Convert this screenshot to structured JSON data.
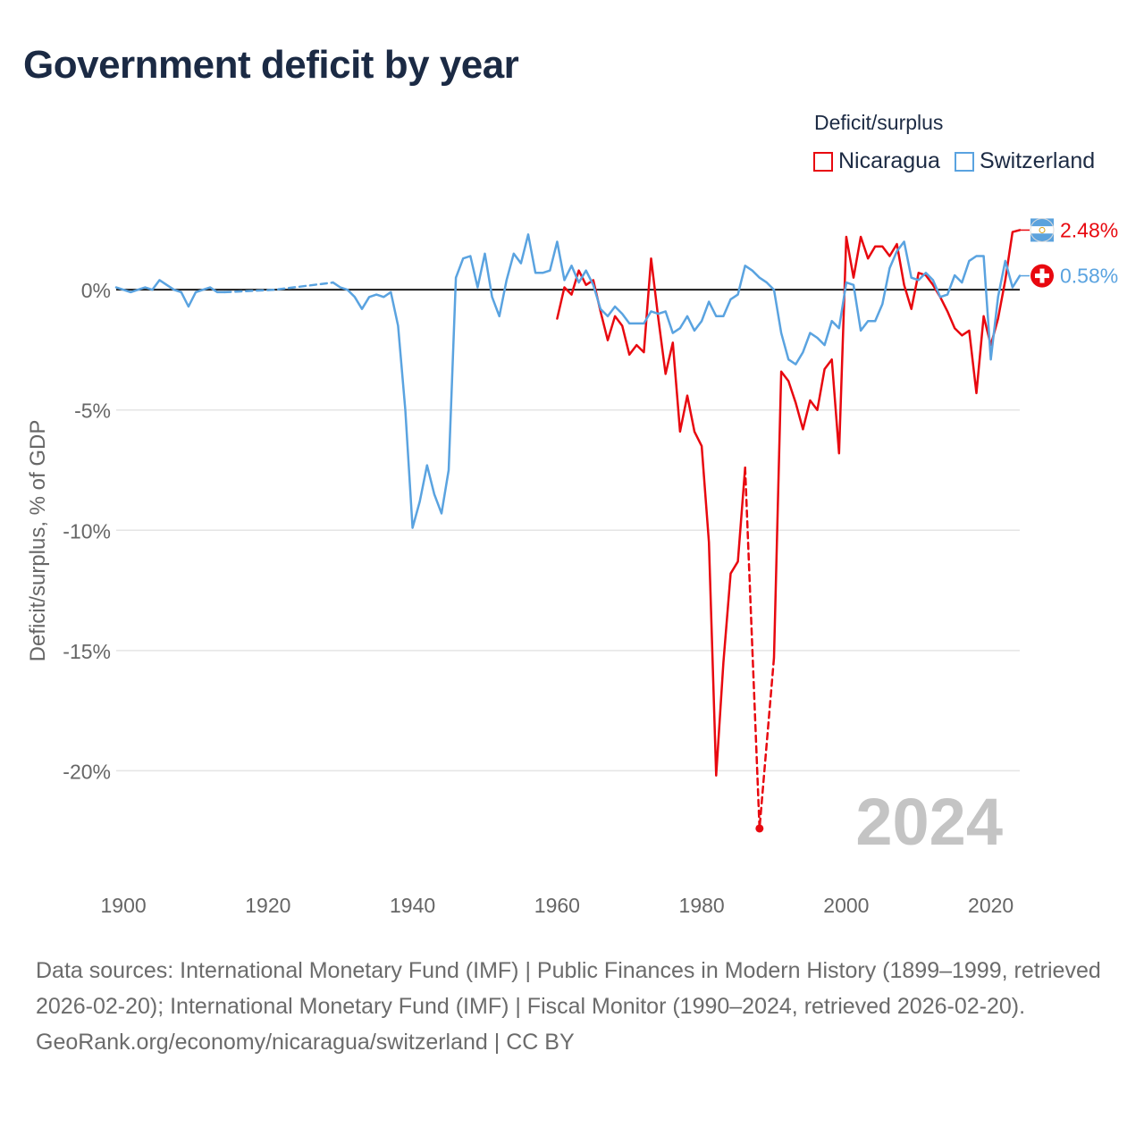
{
  "title": "Government deficit by year",
  "legend": {
    "title": "Deficit/surplus",
    "items": [
      {
        "name": "Nicaragua",
        "color": "#e8080f"
      },
      {
        "name": "Switzerland",
        "color": "#5aa3e0"
      }
    ]
  },
  "year_watermark": "2024",
  "sources_text": "Data sources: International Monetary Fund (IMF) | Public Finances in Modern History (1899–1999, retrieved 2026-02-20); International Monetary Fund (IMF) | Fiscal Monitor (1990–2024, retrieved 2026-02-20).",
  "credit_text": "GeoRank.org/economy/nicaragua/switzerland | CC BY",
  "chart_data": {
    "type": "line",
    "title": "Government deficit by year",
    "xlabel": "",
    "ylabel": "Deficit/surplus, % of GDP",
    "xlim": [
      1899,
      2024
    ],
    "ylim": [
      -24,
      3.5
    ],
    "x_ticks": [
      1900,
      1920,
      1940,
      1960,
      1980,
      2000,
      2020
    ],
    "x_tick_labels": [
      "1900",
      "1920",
      "1940",
      "1960",
      "1980",
      "2000",
      "2020"
    ],
    "y_ticks": [
      0,
      -5,
      -10,
      -15,
      -20
    ],
    "y_tick_labels": [
      "0%",
      "-5%",
      "-10%",
      "-15%",
      "-20%"
    ],
    "grid": true,
    "series": [
      {
        "name": "Nicaragua",
        "color": "#e8080f",
        "end_label": "2.48%",
        "segments": [
          {
            "dashed": false,
            "points": [
              [
                1960,
                -1.2
              ],
              [
                1961,
                0.1
              ],
              [
                1962,
                -0.2
              ],
              [
                1963,
                0.8
              ],
              [
                1964,
                0.2
              ],
              [
                1965,
                0.4
              ],
              [
                1966,
                -0.9
              ],
              [
                1967,
                -2.1
              ],
              [
                1968,
                -1.1
              ],
              [
                1969,
                -1.5
              ],
              [
                1970,
                -2.7
              ],
              [
                1971,
                -2.3
              ],
              [
                1972,
                -2.6
              ],
              [
                1973,
                1.3
              ],
              [
                1974,
                -1.2
              ],
              [
                1975,
                -3.5
              ],
              [
                1976,
                -2.2
              ],
              [
                1977,
                -5.9
              ],
              [
                1978,
                -4.4
              ],
              [
                1979,
                -5.9
              ],
              [
                1980,
                -6.5
              ],
              [
                1981,
                -10.5
              ],
              [
                1982,
                -20.2
              ],
              [
                1983,
                -15.5
              ],
              [
                1984,
                -11.8
              ],
              [
                1985,
                -11.3
              ],
              [
                1986,
                -7.4
              ]
            ]
          },
          {
            "dashed": true,
            "points": [
              [
                1986,
                -7.4
              ],
              [
                1988,
                -22.4
              ],
              [
                1990,
                -15.3
              ]
            ]
          },
          {
            "dashed": false,
            "points": [
              [
                1990,
                -15.3
              ],
              [
                1991,
                -3.4
              ],
              [
                1992,
                -3.8
              ],
              [
                1993,
                -4.7
              ],
              [
                1994,
                -5.8
              ],
              [
                1995,
                -4.6
              ],
              [
                1996,
                -5
              ],
              [
                1997,
                -3.3
              ],
              [
                1998,
                -2.9
              ],
              [
                1999,
                -6.8
              ],
              [
                2000,
                2.2
              ],
              [
                2001,
                0.5
              ],
              [
                2002,
                2.2
              ],
              [
                2003,
                1.3
              ],
              [
                2004,
                1.8
              ],
              [
                2005,
                1.8
              ],
              [
                2006,
                1.4
              ],
              [
                2007,
                1.9
              ],
              [
                2008,
                0.2
              ],
              [
                2009,
                -0.8
              ],
              [
                2010,
                0.7
              ],
              [
                2011,
                0.6
              ],
              [
                2012,
                0.2
              ],
              [
                2013,
                -0.3
              ],
              [
                2014,
                -0.9
              ],
              [
                2015,
                -1.6
              ],
              [
                2016,
                -1.9
              ],
              [
                2017,
                -1.7
              ],
              [
                2018,
                -4.3
              ],
              [
                2019,
                -1.1
              ],
              [
                2020,
                -2.3
              ],
              [
                2021,
                -1.2
              ],
              [
                2022,
                0.4
              ],
              [
                2023,
                2.4
              ],
              [
                2024,
                2.48
              ]
            ]
          }
        ],
        "marker": [
          1988,
          -22.4
        ]
      },
      {
        "name": "Switzerland",
        "color": "#5aa3e0",
        "end_label": "0.58%",
        "segments": [
          {
            "dashed": false,
            "points": [
              [
                1899,
                0.1
              ],
              [
                1900,
                0
              ],
              [
                1901,
                -0.1
              ],
              [
                1902,
                0
              ],
              [
                1903,
                0.1
              ],
              [
                1904,
                0
              ],
              [
                1905,
                0.4
              ],
              [
                1906,
                0.2
              ],
              [
                1907,
                0
              ],
              [
                1908,
                -0.1
              ],
              [
                1909,
                -0.7
              ],
              [
                1910,
                -0.1
              ],
              [
                1911,
                0
              ],
              [
                1912,
                0.1
              ],
              [
                1913,
                -0.1
              ],
              [
                1914,
                -0.1
              ]
            ]
          },
          {
            "dashed": true,
            "points": [
              [
                1914,
                -0.1
              ],
              [
                1921,
                0
              ],
              [
                1929,
                0.3
              ]
            ]
          },
          {
            "dashed": false,
            "points": [
              [
                1929,
                0.3
              ],
              [
                1930,
                0.1
              ],
              [
                1931,
                0
              ],
              [
                1932,
                -0.3
              ],
              [
                1933,
                -0.8
              ],
              [
                1934,
                -0.3
              ],
              [
                1935,
                -0.2
              ],
              [
                1936,
                -0.3
              ],
              [
                1937,
                -0.1
              ],
              [
                1938,
                -1.5
              ],
              [
                1939,
                -5
              ],
              [
                1940,
                -9.9
              ],
              [
                1941,
                -8.8
              ],
              [
                1942,
                -7.3
              ],
              [
                1943,
                -8.5
              ],
              [
                1944,
                -9.3
              ],
              [
                1945,
                -7.5
              ],
              [
                1946,
                0.5
              ],
              [
                1947,
                1.3
              ],
              [
                1948,
                1.4
              ],
              [
                1949,
                0.1
              ],
              [
                1950,
                1.5
              ],
              [
                1951,
                -0.3
              ],
              [
                1952,
                -1.1
              ],
              [
                1953,
                0.4
              ],
              [
                1954,
                1.5
              ],
              [
                1955,
                1.1
              ],
              [
                1956,
                2.3
              ],
              [
                1957,
                0.7
              ],
              [
                1958,
                0.7
              ],
              [
                1959,
                0.8
              ],
              [
                1960,
                2
              ],
              [
                1961,
                0.4
              ],
              [
                1962,
                1
              ],
              [
                1963,
                0.3
              ],
              [
                1964,
                0.8
              ],
              [
                1965,
                0.2
              ],
              [
                1966,
                -0.8
              ],
              [
                1967,
                -1.1
              ],
              [
                1968,
                -0.7
              ],
              [
                1969,
                -1
              ],
              [
                1970,
                -1.4
              ],
              [
                1971,
                -1.4
              ],
              [
                1972,
                -1.4
              ],
              [
                1973,
                -0.9
              ],
              [
                1974,
                -1
              ],
              [
                1975,
                -0.9
              ],
              [
                1976,
                -1.8
              ],
              [
                1977,
                -1.6
              ],
              [
                1978,
                -1.1
              ],
              [
                1979,
                -1.7
              ],
              [
                1980,
                -1.3
              ],
              [
                1981,
                -0.5
              ],
              [
                1982,
                -1.1
              ],
              [
                1983,
                -1.1
              ],
              [
                1984,
                -0.4
              ],
              [
                1985,
                -0.2
              ],
              [
                1986,
                1
              ],
              [
                1987,
                0.8
              ],
              [
                1988,
                0.5
              ],
              [
                1989,
                0.3
              ],
              [
                1990,
                0
              ],
              [
                1991,
                -1.8
              ],
              [
                1992,
                -2.9
              ],
              [
                1993,
                -3.1
              ],
              [
                1994,
                -2.6
              ],
              [
                1995,
                -1.8
              ],
              [
                1996,
                -2
              ],
              [
                1997,
                -2.3
              ],
              [
                1998,
                -1.3
              ],
              [
                1999,
                -1.6
              ],
              [
                2000,
                0.3
              ],
              [
                2001,
                0.2
              ],
              [
                2002,
                -1.7
              ],
              [
                2003,
                -1.3
              ],
              [
                2004,
                -1.3
              ],
              [
                2005,
                -0.6
              ],
              [
                2006,
                0.9
              ],
              [
                2007,
                1.6
              ],
              [
                2008,
                2
              ],
              [
                2009,
                0.5
              ],
              [
                2010,
                0.4
              ],
              [
                2011,
                0.7
              ],
              [
                2012,
                0.4
              ],
              [
                2013,
                -0.3
              ],
              [
                2014,
                -0.2
              ],
              [
                2015,
                0.6
              ],
              [
                2016,
                0.3
              ],
              [
                2017,
                1.2
              ],
              [
                2018,
                1.4
              ],
              [
                2019,
                1.4
              ],
              [
                2020,
                -2.9
              ],
              [
                2021,
                -0.3
              ],
              [
                2022,
                1.2
              ],
              [
                2023,
                0.1
              ],
              [
                2024,
                0.58
              ]
            ]
          }
        ]
      }
    ]
  }
}
